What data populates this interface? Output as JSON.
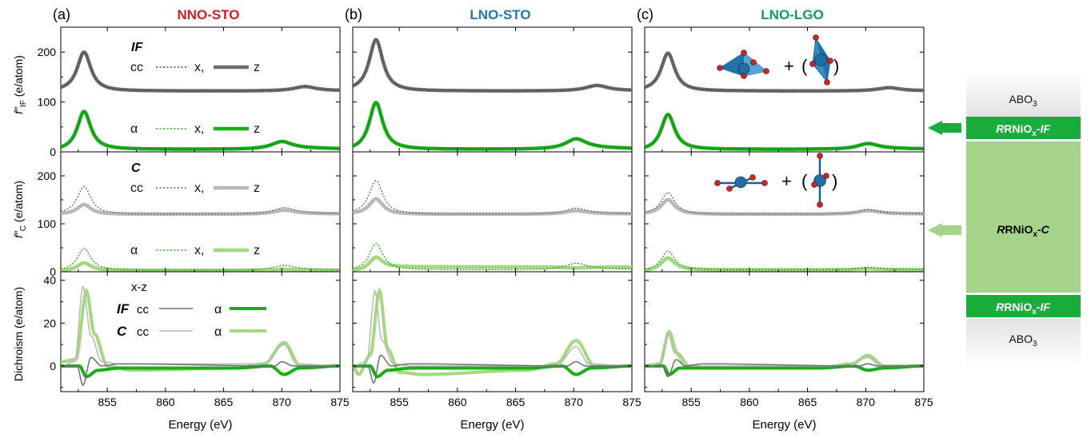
{
  "figure": {
    "panel_labels": [
      "(a)",
      "(b)",
      "(c)"
    ],
    "panel_titles": [
      "NNO-STO",
      "LNO-STO",
      "LNO-LGO"
    ],
    "panel_title_colors": [
      "#cc1f26",
      "#1f77b4",
      "#0e9b63"
    ],
    "xlabel": "Energy (eV)",
    "ylabel_top_main": "f″",
    "ylabel_top_sub": "IF",
    "ylabel_top_unit": " (e/atom)",
    "ylabel_mid_main": "f″",
    "ylabel_mid_sub": "C",
    "ylabel_mid_unit": " (e/atom)",
    "ylabel_bottom": "Dichroism (e/atom)",
    "xticks": [
      "855",
      "860",
      "865",
      "870",
      "875"
    ],
    "yticks_fIF": [
      "0",
      "100",
      "200"
    ],
    "yticks_fC": [
      "0",
      "100",
      "200"
    ],
    "yticks_dichroism": [
      "0",
      "20",
      "40"
    ],
    "legend_IF": {
      "title": "IF",
      "cc": "cc",
      "x": "x,",
      "z": "z",
      "alpha": "α"
    },
    "legend_C": {
      "title": "C",
      "cc": "cc",
      "x": "x,",
      "z": "z",
      "alpha": "α"
    },
    "legend_dichroism": {
      "title": "x-z",
      "IF": "IF",
      "C": "C",
      "cc": "cc",
      "alpha": "α"
    },
    "plus": "+",
    "paren_open": "(",
    "paren_close": ")"
  },
  "sidebar": {
    "top_layer": "ABO",
    "top_sub": "3",
    "if_top_label": "RNiO",
    "if_top_sub": "x",
    "if_top_suffix": "-IF",
    "c_label": "RNiO",
    "c_sub": "x",
    "c_suffix": "-C",
    "if_bottom_label": "RNiO",
    "if_bottom_sub": "x",
    "if_bottom_suffix": "-IF",
    "bottom_layer": "ABO",
    "bottom_sub": "3",
    "colors": {
      "if_band": "#1aad3c",
      "c_band": "#a6d38a",
      "abo_band": "#e9e9e9"
    }
  },
  "chart_data": [
    {
      "type": "line",
      "panel": "(a) NNO-STO",
      "xlim": [
        851,
        875
      ],
      "rows": {
        "fIF": {
          "ylim": [
            0,
            250
          ],
          "cc": {
            "pre": 122,
            "peak1": [
              853,
              200
            ],
            "post": 122,
            "peak2": [
              872,
              130
            ]
          },
          "alpha": {
            "pre": 2,
            "peak1": [
              853,
              80
            ],
            "post": 5,
            "peak2": [
              870,
              20
            ]
          }
        },
        "fC": {
          "ylim": [
            0,
            250
          ],
          "cc_x": {
            "pre": 120,
            "peak1": [
              853,
              178
            ],
            "post": 120,
            "peak2": [
              870.2,
              133
            ]
          },
          "cc_z": {
            "pre": 120,
            "peak1": [
              853,
              140
            ],
            "post": 120,
            "peak2": [
              870.2,
              128
            ]
          },
          "alpha_x": {
            "pre": 1,
            "peak1": [
              853,
              48
            ],
            "post": 3,
            "peak2": [
              870.2,
              13
            ]
          },
          "alpha_z": {
            "pre": 1,
            "peak1": [
              853,
              18
            ],
            "post": 3,
            "peak2": [
              870.2,
              5
            ]
          }
        },
        "dichroism": {
          "ylim": [
            -12,
            44
          ],
          "IF_cc": [
            [
              851,
              0
            ],
            [
              852.4,
              0
            ],
            [
              852.9,
              -9
            ],
            [
              853.6,
              4
            ],
            [
              854.5,
              0
            ],
            [
              856,
              1
            ],
            [
              869.4,
              0
            ],
            [
              870,
              2
            ],
            [
              871,
              0
            ],
            [
              875,
              0
            ]
          ],
          "IF_alpha": [
            [
              851,
              0
            ],
            [
              852.6,
              0
            ],
            [
              853.2,
              -5
            ],
            [
              854.2,
              -2
            ],
            [
              856,
              -1
            ],
            [
              866,
              -1
            ],
            [
              869,
              0
            ],
            [
              870.2,
              -4
            ],
            [
              871.5,
              -1
            ],
            [
              875,
              0
            ]
          ],
          "C_cc": [
            [
              851,
              0
            ],
            [
              852.2,
              2
            ],
            [
              852.9,
              37
            ],
            [
              853.6,
              14
            ],
            [
              854.5,
              2
            ],
            [
              856,
              1
            ],
            [
              868.5,
              1
            ],
            [
              870.2,
              10
            ],
            [
              871.3,
              1
            ],
            [
              875,
              0
            ]
          ],
          "C_alpha": [
            [
              851,
              2
            ],
            [
              852.3,
              3
            ],
            [
              853.2,
              35
            ],
            [
              853.9,
              15
            ],
            [
              855,
              0
            ],
            [
              857,
              -2
            ],
            [
              866,
              -1
            ],
            [
              868.5,
              1
            ],
            [
              870.2,
              11
            ],
            [
              871.6,
              0
            ],
            [
              875,
              0
            ]
          ]
        }
      }
    },
    {
      "type": "line",
      "panel": "(b) LNO-STO",
      "xlim": [
        851,
        875
      ],
      "rows": {
        "fIF": {
          "ylim": [
            0,
            250
          ],
          "cc": {
            "pre": 122,
            "peak1": [
              853,
              225
            ],
            "post": 122,
            "peak2": [
              872,
              132
            ]
          },
          "alpha": {
            "pre": 2,
            "peak1": [
              853,
              98
            ],
            "post": 5,
            "peak2": [
              870.2,
              25
            ]
          }
        },
        "fC": {
          "ylim": [
            0,
            250
          ],
          "cc_x": {
            "pre": 120,
            "peak1": [
              853,
              190
            ],
            "post": 120,
            "peak2": [
              870.2,
              132
            ]
          },
          "cc_z": {
            "pre": 120,
            "peak1": [
              853,
              152
            ],
            "post": 120,
            "peak2": [
              870.2,
              127
            ]
          },
          "alpha_x": {
            "pre": 1,
            "peak1": [
              853,
              58
            ],
            "post": 4,
            "peak2": [
              870.2,
              17
            ]
          },
          "alpha_z": {
            "pre": 1,
            "peak1": [
              853,
              28
            ],
            "post": 10,
            "peak2": [
              870.2,
              8
            ]
          }
        },
        "dichroism": {
          "ylim": [
            -12,
            44
          ],
          "IF_cc": [
            [
              851,
              0
            ],
            [
              852.3,
              0
            ],
            [
              852.8,
              -8
            ],
            [
              853.4,
              5
            ],
            [
              854.3,
              0
            ],
            [
              856,
              1
            ],
            [
              869.4,
              0
            ],
            [
              870.2,
              2
            ],
            [
              871,
              0
            ],
            [
              875,
              0
            ]
          ],
          "IF_alpha": [
            [
              851,
              0
            ],
            [
              852.5,
              0
            ],
            [
              853.1,
              -5
            ],
            [
              854,
              -2
            ],
            [
              856,
              -1
            ],
            [
              866,
              -1
            ],
            [
              869,
              0
            ],
            [
              870.2,
              -4
            ],
            [
              871.5,
              -1
            ],
            [
              875,
              0
            ]
          ],
          "C_cc": [
            [
              851,
              0
            ],
            [
              852.2,
              2
            ],
            [
              852.9,
              35
            ],
            [
              853.5,
              12
            ],
            [
              854.5,
              1
            ],
            [
              856,
              0
            ],
            [
              868.5,
              0
            ],
            [
              870.2,
              9
            ],
            [
              871.3,
              1
            ],
            [
              875,
              0
            ]
          ],
          "C_alpha": [
            [
              851,
              0
            ],
            [
              851.5,
              -4
            ],
            [
              852.5,
              5
            ],
            [
              853.3,
              35
            ],
            [
              854,
              8
            ],
            [
              855,
              -3
            ],
            [
              857,
              -4
            ],
            [
              866,
              -2
            ],
            [
              868.5,
              1
            ],
            [
              870.2,
              12
            ],
            [
              871.8,
              0
            ],
            [
              875,
              0
            ]
          ]
        }
      }
    },
    {
      "type": "line",
      "panel": "(c) LNO-LGO",
      "xlim": [
        851,
        875
      ],
      "rows": {
        "fIF": {
          "ylim": [
            0,
            250
          ],
          "cc": {
            "pre": 122,
            "peak1": [
              853,
              198
            ],
            "post": 122,
            "peak2": [
              872,
              128
            ]
          },
          "alpha": {
            "pre": 2,
            "peak1": [
              853,
              74
            ],
            "post": 5,
            "peak2": [
              870.2,
              16
            ]
          }
        },
        "fC": {
          "ylim": [
            0,
            250
          ],
          "cc_x": {
            "pre": 120,
            "peak1": [
              853,
              165
            ],
            "post": 120,
            "peak2": [
              870.2,
              129
            ]
          },
          "cc_z": {
            "pre": 120,
            "peak1": [
              853,
              150
            ],
            "post": 120,
            "peak2": [
              870.2,
              127
            ]
          },
          "alpha_x": {
            "pre": 1,
            "peak1": [
              853,
              42
            ],
            "post": 4,
            "peak2": [
              870.2,
              9
            ]
          },
          "alpha_z": {
            "pre": 1,
            "peak1": [
              853,
              28
            ],
            "post": 4,
            "peak2": [
              870.2,
              6
            ]
          }
        },
        "dichroism": {
          "ylim": [
            -12,
            44
          ],
          "IF_cc": [
            [
              851,
              0
            ],
            [
              852.5,
              0
            ],
            [
              853,
              -5
            ],
            [
              853.7,
              3
            ],
            [
              854.5,
              0
            ],
            [
              856,
              1
            ],
            [
              869.4,
              0
            ],
            [
              870.2,
              1
            ],
            [
              871,
              0
            ],
            [
              875,
              0
            ]
          ],
          "IF_alpha": [
            [
              851,
              0
            ],
            [
              852.6,
              0
            ],
            [
              853.1,
              -4
            ],
            [
              854,
              -1
            ],
            [
              856,
              -1
            ],
            [
              866,
              -1
            ],
            [
              869,
              0
            ],
            [
              870.2,
              -2
            ],
            [
              871.5,
              -1
            ],
            [
              875,
              0
            ]
          ],
          "C_cc": [
            [
              851,
              0
            ],
            [
              852.3,
              1
            ],
            [
              853,
              15
            ],
            [
              853.6,
              6
            ],
            [
              854.5,
              0
            ],
            [
              856,
              0
            ],
            [
              868.5,
              0
            ],
            [
              870.2,
              4
            ],
            [
              871.3,
              0
            ],
            [
              875,
              0
            ]
          ],
          "C_alpha": [
            [
              851,
              0
            ],
            [
              852.3,
              1
            ],
            [
              853.1,
              16
            ],
            [
              853.8,
              6
            ],
            [
              854.8,
              0
            ],
            [
              857,
              -1
            ],
            [
              866,
              -1
            ],
            [
              868.8,
              1
            ],
            [
              870.2,
              5
            ],
            [
              871.6,
              0
            ],
            [
              875,
              0
            ]
          ]
        }
      }
    }
  ],
  "colors": {
    "cc_dark": "#6e6e6e",
    "cc_light": "#b8b8b8",
    "alpha_dark": "#1aad1a",
    "alpha_light": "#a3d97e",
    "ni_atom": "#1f6fa6",
    "o_atom": "#d62020"
  }
}
